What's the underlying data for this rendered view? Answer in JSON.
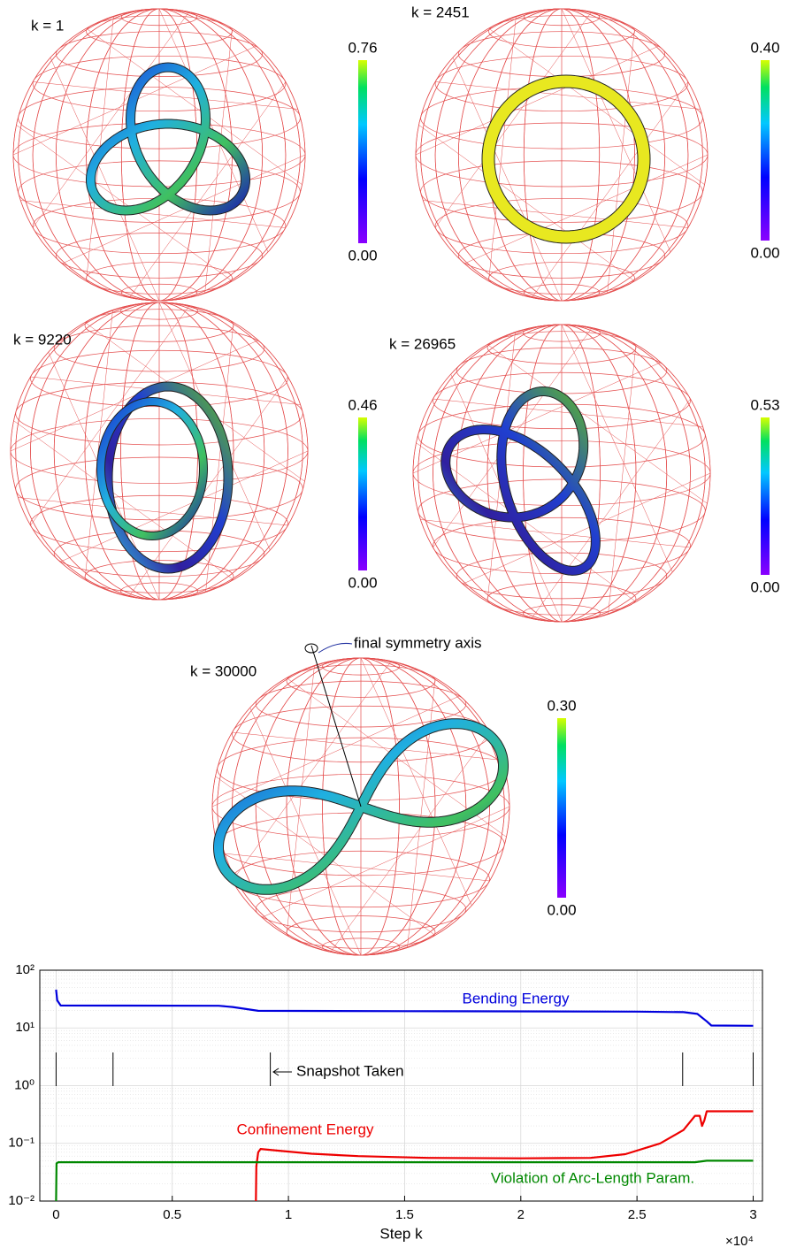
{
  "panels": [
    {
      "label": "k = 1",
      "colorbar_ticks": [
        {
          "value": 0,
          "label": "0.00"
        },
        0.76
      ]
    },
    {
      "label": "k = 2451",
      "colorbar_ticks": [
        {
          "value": 0,
          "label": "0.00"
        },
        {
          "value": 0.4,
          "label": "0.40"
        }
      ]
    },
    {
      "label": "k = 9220",
      "colorbar_ticks": [
        {
          "value": 0,
          "label": "0.00"
        },
        0.46
      ]
    },
    {
      "label": "k = 26965",
      "colorbar_ticks": [
        {
          "value": 0,
          "label": "0.00"
        },
        0.53
      ]
    },
    {
      "label": "k = 30000",
      "colorbar_ticks": [
        {
          "value": 0,
          "label": "0.00"
        },
        {
          "value": 0.3,
          "label": "0.30"
        }
      ]
    }
  ],
  "axis_annotation": "final symmetry axis",
  "chart_data": {
    "type": "line",
    "xlabel": "Step k",
    "x_multiplier": "×10⁴",
    "xlim": [
      -0.07,
      3.04
    ],
    "xticks": [
      0,
      0.5,
      1,
      1.5,
      2,
      2.5,
      3
    ],
    "ylim": [
      0.01,
      100
    ],
    "yscale": "log",
    "yticks": [
      {
        "value": 0.01,
        "label": "10⁻²"
      },
      {
        "value": 0.1,
        "label": "10⁻¹"
      },
      {
        "value": 1,
        "label": "10⁰"
      },
      {
        "value": 10,
        "label": "10¹"
      },
      {
        "value": 100,
        "label": "10²"
      }
    ],
    "grid": true,
    "series": [
      {
        "name": "Bending Energy",
        "color": "#0000dd",
        "x": [
          0,
          0.005,
          0.02,
          0.3,
          0.7,
          0.76,
          0.87,
          1.5,
          2.5,
          2.7,
          2.76,
          2.8,
          2.82,
          3.0
        ],
        "values": [
          46,
          30,
          24.5,
          24.4,
          24.2,
          23,
          19.8,
          19.5,
          19.2,
          18.8,
          17.5,
          13,
          11,
          10.9
        ]
      },
      {
        "name": "Confinement Energy",
        "color": "#ee0000",
        "x": [
          0.86,
          0.862,
          0.87,
          0.88,
          0.95,
          1.1,
          1.3,
          1.6,
          2.0,
          2.3,
          2.45,
          2.6,
          2.7,
          2.75,
          2.77,
          2.78,
          2.79,
          2.8,
          3.0
        ],
        "values": [
          0.01,
          0.04,
          0.07,
          0.08,
          0.075,
          0.066,
          0.06,
          0.056,
          0.055,
          0.056,
          0.065,
          0.1,
          0.17,
          0.3,
          0.3,
          0.2,
          0.25,
          0.36,
          0.36
        ]
      },
      {
        "name": "Violation of Arc-Length Param.",
        "color": "#008800",
        "x": [
          0,
          0.002,
          0.01,
          2.75,
          2.8,
          3.0
        ],
        "values": [
          0.01,
          0.045,
          0.047,
          0.047,
          0.05,
          0.05
        ]
      }
    ],
    "snapshots": {
      "label": "Snapshot Taken",
      "x": [
        0.0001,
        0.2451,
        0.922,
        2.6965,
        3.0
      ]
    }
  }
}
